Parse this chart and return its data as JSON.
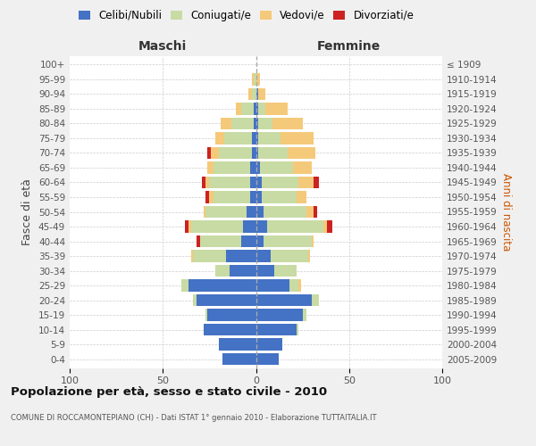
{
  "age_groups": [
    "0-4",
    "5-9",
    "10-14",
    "15-19",
    "20-24",
    "25-29",
    "30-34",
    "35-39",
    "40-44",
    "45-49",
    "50-54",
    "55-59",
    "60-64",
    "65-69",
    "70-74",
    "75-79",
    "80-84",
    "85-89",
    "90-94",
    "95-99",
    "100+"
  ],
  "birth_years": [
    "2005-2009",
    "2000-2004",
    "1995-1999",
    "1990-1994",
    "1985-1989",
    "1980-1984",
    "1975-1979",
    "1970-1974",
    "1965-1969",
    "1960-1964",
    "1955-1959",
    "1950-1954",
    "1945-1949",
    "1940-1944",
    "1935-1939",
    "1930-1934",
    "1925-1929",
    "1920-1924",
    "1915-1919",
    "1910-1914",
    "≤ 1909"
  ],
  "maschi": {
    "celibi": [
      18,
      20,
      28,
      26,
      32,
      36,
      14,
      16,
      8,
      7,
      5,
      3,
      3,
      3,
      2,
      2,
      1,
      1,
      0,
      0,
      0
    ],
    "coniugati": [
      0,
      0,
      0,
      1,
      2,
      4,
      8,
      18,
      22,
      28,
      22,
      20,
      22,
      20,
      18,
      15,
      12,
      7,
      2,
      1,
      0
    ],
    "vedovi": [
      0,
      0,
      0,
      0,
      0,
      0,
      0,
      1,
      0,
      1,
      1,
      2,
      2,
      3,
      4,
      5,
      6,
      3,
      2,
      1,
      0
    ],
    "divorziati": [
      0,
      0,
      0,
      0,
      0,
      0,
      0,
      0,
      2,
      2,
      0,
      2,
      2,
      0,
      2,
      0,
      0,
      0,
      0,
      0,
      0
    ]
  },
  "femmine": {
    "nubili": [
      12,
      14,
      22,
      25,
      30,
      18,
      10,
      8,
      4,
      6,
      4,
      3,
      3,
      2,
      1,
      1,
      1,
      1,
      1,
      0,
      0
    ],
    "coniugate": [
      0,
      0,
      1,
      2,
      4,
      5,
      12,
      20,
      26,
      30,
      23,
      19,
      20,
      18,
      16,
      12,
      8,
      4,
      0,
      0,
      0
    ],
    "vedove": [
      0,
      0,
      0,
      0,
      0,
      1,
      0,
      1,
      1,
      2,
      4,
      5,
      8,
      10,
      15,
      18,
      16,
      12,
      4,
      2,
      0
    ],
    "divorziate": [
      0,
      0,
      0,
      0,
      0,
      0,
      0,
      0,
      0,
      3,
      2,
      0,
      3,
      0,
      0,
      0,
      0,
      0,
      0,
      0,
      0
    ]
  },
  "colors": {
    "celibi": "#4472C4",
    "coniugati": "#C8DBA4",
    "vedovi": "#F5C97A",
    "divorziati": "#CC2222"
  },
  "xlim": 100,
  "title": "Popolazione per età, sesso e stato civile - 2010",
  "subtitle": "COMUNE DI ROCCAMONTEPIANO (CH) - Dati ISTAT 1° gennaio 2010 - Elaborazione TUTTAITALIA.IT",
  "ylabel_left": "Fasce di età",
  "ylabel_right": "Anni di nascita",
  "label_maschi": "Maschi",
  "label_femmine": "Femmine",
  "legend_labels": [
    "Celibi/Nubili",
    "Coniugati/e",
    "Vedovi/e",
    "Divorziati/e"
  ],
  "bg_color": "#f0f0f0",
  "plot_bg": "#ffffff",
  "tick_fontsize": 7.5,
  "bar_height": 0.82
}
